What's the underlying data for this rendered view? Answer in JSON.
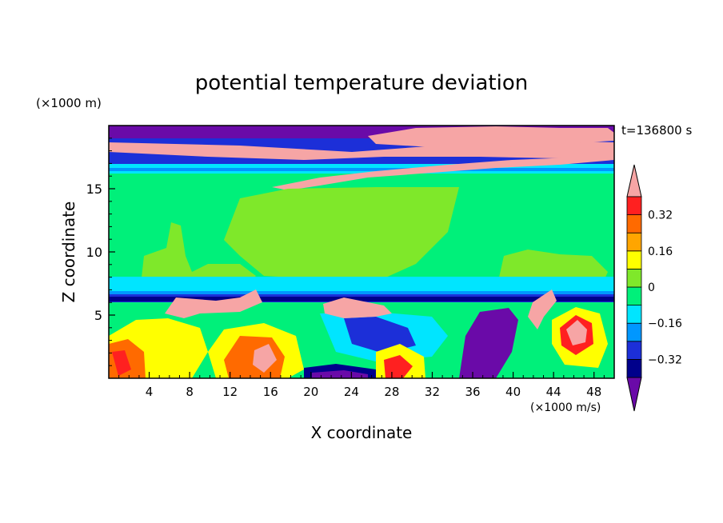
{
  "chart_data": {
    "type": "heatmap",
    "title": "potential temperature deviation",
    "xlabel": "X coordinate",
    "ylabel": "Z coordinate",
    "x_unit": "(×1000 m/s)",
    "y_unit": "(×1000 m)",
    "time_label": "t=136800 s",
    "xlim": [
      0,
      50
    ],
    "ylim": [
      0,
      20
    ],
    "x_ticks": [
      4,
      8,
      12,
      16,
      20,
      24,
      28,
      32,
      36,
      40,
      44,
      48
    ],
    "y_ticks": [
      5,
      10,
      15
    ],
    "colorbar": {
      "levels": [
        -0.4,
        -0.32,
        -0.24,
        -0.16,
        -0.08,
        0,
        0.08,
        0.16,
        0.24,
        0.32,
        0.4
      ],
      "tick_labels": [
        "0.32",
        "0.16",
        "0",
        "−0.16",
        "−0.32"
      ],
      "colors": [
        "#6a0aa8",
        "#00008b",
        "#1c2fd8",
        "#0097ff",
        "#00e5ff",
        "#00f07a",
        "#7fe82a",
        "#ffff00",
        "#ffa500",
        "#ff6a00",
        "#ff2020",
        "#f6a5a5"
      ],
      "extend": "both"
    }
  }
}
